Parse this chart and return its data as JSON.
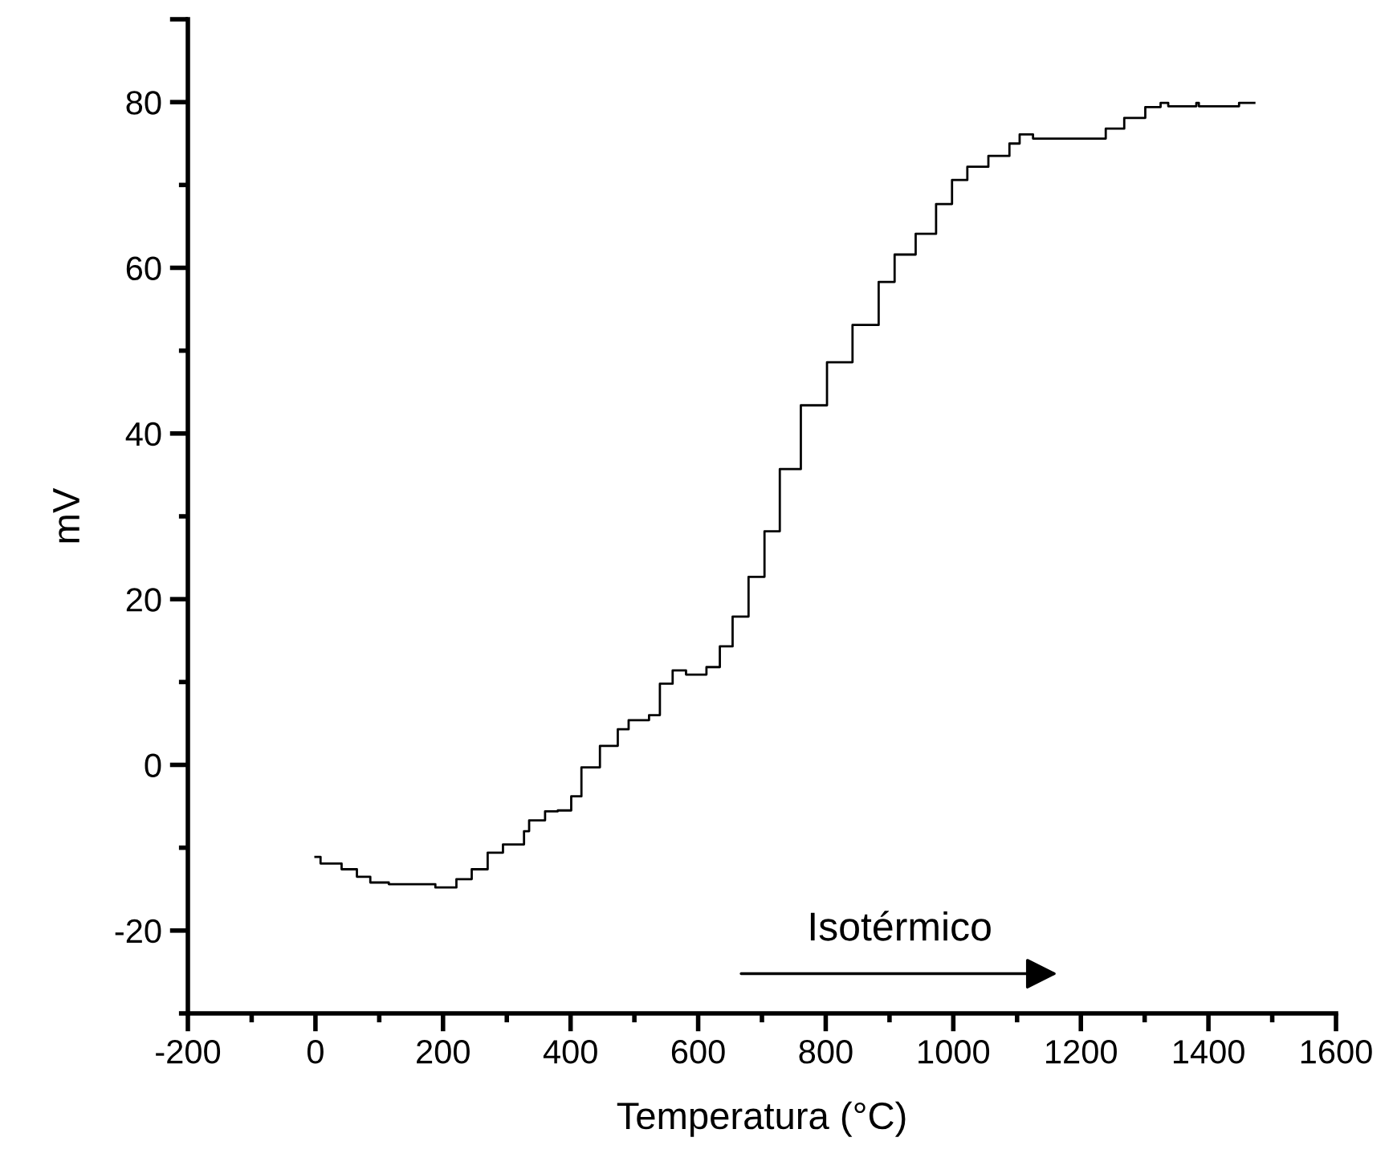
{
  "chart_data": {
    "type": "step",
    "xlabel": "Temperatura (°C)",
    "ylabel": "mV",
    "xlim": [
      -200,
      1600
    ],
    "xticks": [
      -200,
      0,
      200,
      400,
      600,
      800,
      1000,
      1200,
      1400,
      1600
    ],
    "ylim": [
      -30,
      90
    ],
    "yticks": [
      -20,
      0,
      20,
      40,
      60,
      80,
      {
        "value": 90,
        "label": null
      }
    ],
    "grid": false,
    "legend": false,
    "marker": "none",
    "line_style": "solid",
    "annotations": [
      "Isotérmico"
    ],
    "series": [
      {
        "color": "#000000",
        "x": [
          0,
          8,
          41,
          65,
          86,
          115,
          188,
          221,
          245,
          270,
          294,
          327,
          335,
          360,
          380,
          401,
          417,
          446,
          474,
          491,
          523,
          540,
          560,
          581,
          593,
          613,
          634,
          654,
          679,
          704,
          728,
          761,
          802,
          842,
          883,
          908,
          941,
          973,
          998,
          1022,
          1055,
          1088,
          1104,
          1125,
          1202,
          1239,
          1268,
          1301,
          1325,
          1337,
          1381,
          1385,
          1448,
          1472
        ],
        "values": [
          -11.1,
          -11.9,
          -12.6,
          -13.5,
          -14.2,
          -14.4,
          -14.8,
          -13.8,
          -12.6,
          -10.6,
          -9.6,
          -8.0,
          -6.7,
          -5.6,
          -5.5,
          -3.8,
          -0.3,
          2.3,
          4.3,
          5.4,
          6.0,
          9.8,
          11.4,
          10.9,
          10.9,
          11.8,
          14.3,
          17.9,
          22.7,
          28.2,
          35.7,
          43.4,
          48.6,
          53.1,
          58.3,
          61.6,
          64.1,
          67.7,
          70.6,
          72.2,
          73.5,
          75.0,
          76.1,
          75.6,
          75.6,
          76.8,
          78.1,
          79.4,
          79.9,
          79.5,
          79.9,
          79.5,
          79.9,
          79.9
        ]
      }
    ]
  }
}
